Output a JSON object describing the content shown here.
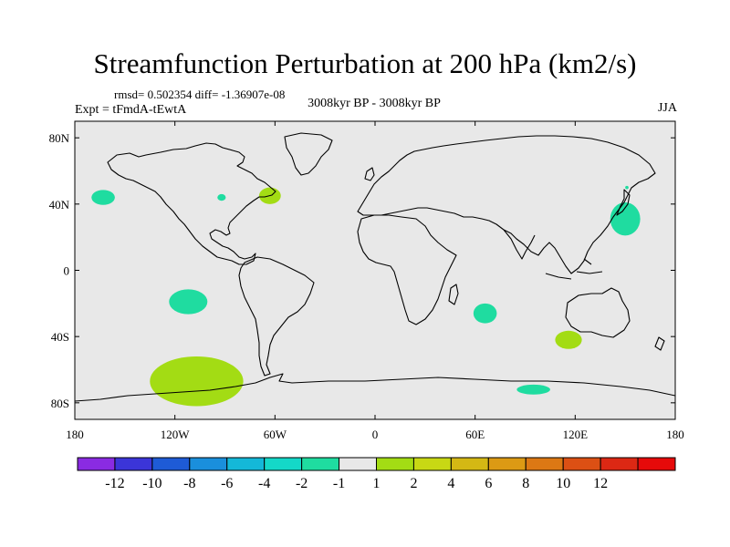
{
  "chart_data": {
    "type": "contour-map",
    "title": "Streamfunction Perturbation at 200 hPa (km2/s)",
    "stats": "rmsd= 0.502354 diff= -1.36907e-08",
    "period": "3008kyr BP - 3008kyr BP",
    "experiment": "Expt = tFmdA-tEwtA",
    "season": "JJA",
    "lon_range": [
      -180,
      180
    ],
    "lat_range": [
      -90,
      90
    ],
    "x_ticks": [
      {
        "value": -180,
        "label": "180"
      },
      {
        "value": -120,
        "label": "120W"
      },
      {
        "value": -60,
        "label": "60W"
      },
      {
        "value": 0,
        "label": "0"
      },
      {
        "value": 60,
        "label": "60E"
      },
      {
        "value": 120,
        "label": "120E"
      },
      {
        "value": 180,
        "label": "180"
      }
    ],
    "y_ticks": [
      {
        "value": 80,
        "label": "80N"
      },
      {
        "value": 40,
        "label": "40N"
      },
      {
        "value": 0,
        "label": "0"
      },
      {
        "value": -40,
        "label": "40S"
      },
      {
        "value": -80,
        "label": "80S"
      }
    ],
    "colorbar": {
      "colors": [
        "#8a2be2",
        "#3b35d8",
        "#1e5bd6",
        "#1a8fdc",
        "#14b8d8",
        "#14d8c8",
        "#1fdca0",
        "#e8e8e8",
        "#a3dc14",
        "#c8d814",
        "#d4b814",
        "#dc9a14",
        "#dc7814",
        "#dc5014",
        "#dc2814",
        "#e60a0a"
      ],
      "labels": [
        "-12",
        "-10",
        "-8",
        "-6",
        "-4",
        "-2",
        "-1",
        "1",
        "2",
        "4",
        "6",
        "8",
        "10",
        "12"
      ]
    },
    "anomalies": [
      {
        "sign": "negative",
        "level": "-1 to -2",
        "color": "#1fdca0",
        "center": [
          -163,
          44
        ],
        "radius_deg": [
          7,
          4.5
        ]
      },
      {
        "sign": "negative",
        "level": "-1 to -2",
        "color": "#1fdca0",
        "center": [
          -92,
          44
        ],
        "radius_deg": [
          2.5,
          2
        ]
      },
      {
        "sign": "positive",
        "level": "1 to 2",
        "color": "#a3dc14",
        "center": [
          -63,
          45
        ],
        "radius_deg": [
          6.5,
          5
        ]
      },
      {
        "sign": "negative",
        "level": "-1 to -2",
        "color": "#1fdca0",
        "center": [
          -112,
          -19
        ],
        "radius_deg": [
          11.5,
          7.5
        ]
      },
      {
        "sign": "positive",
        "level": "1 to 2",
        "color": "#a3dc14",
        "center": [
          -107,
          -67
        ],
        "radius_deg": [
          28,
          15
        ]
      },
      {
        "sign": "negative",
        "level": "-1 to -2",
        "color": "#1fdca0",
        "center": [
          150,
          31
        ],
        "radius_deg": [
          9,
          10
        ]
      },
      {
        "sign": "negative",
        "level": "-1 to -2",
        "color": "#1fdca0",
        "center": [
          151,
          50
        ],
        "radius_deg": [
          1,
          1
        ]
      },
      {
        "sign": "negative",
        "level": "-1 to -2",
        "color": "#1fdca0",
        "center": [
          66,
          -26
        ],
        "radius_deg": [
          7,
          6
        ]
      },
      {
        "sign": "positive",
        "level": "1 to 2",
        "color": "#a3dc14",
        "center": [
          116,
          -42
        ],
        "radius_deg": [
          8,
          5.5
        ]
      },
      {
        "sign": "negative",
        "level": "-1 to -2",
        "color": "#1fdca0",
        "center": [
          95,
          -72
        ],
        "radius_deg": [
          10,
          3
        ]
      }
    ]
  }
}
